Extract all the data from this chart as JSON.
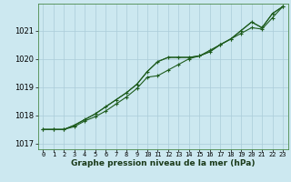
{
  "background_color": "#cce8f0",
  "grid_color": "#aaccd8",
  "line_color": "#1e5c1e",
  "x": [
    0,
    1,
    2,
    3,
    4,
    5,
    6,
    7,
    8,
    9,
    10,
    11,
    12,
    13,
    14,
    15,
    16,
    17,
    18,
    19,
    20,
    21,
    22,
    23
  ],
  "line1": [
    1017.5,
    1017.5,
    1017.5,
    1017.65,
    1017.85,
    1018.05,
    1018.3,
    1018.55,
    1018.8,
    1019.1,
    1019.55,
    1019.9,
    1020.05,
    1020.05,
    1020.05,
    1020.1,
    1020.25,
    1020.5,
    1020.7,
    1021.0,
    1021.3,
    1021.1,
    1021.6,
    1021.85
  ],
  "line3": [
    1017.5,
    1017.5,
    1017.5,
    1017.65,
    1017.85,
    1018.05,
    1018.3,
    1018.55,
    1018.8,
    1019.1,
    1019.55,
    1019.9,
    1020.05,
    1020.05,
    1020.05,
    1020.1,
    1020.25,
    1020.5,
    1020.7,
    1021.0,
    1021.3,
    1021.1,
    1021.6,
    1021.85
  ],
  "ylim": [
    1016.8,
    1021.95
  ],
  "yticks": [
    1017,
    1018,
    1019,
    1020,
    1021
  ],
  "xtick_labels": [
    "0",
    "1",
    "2",
    "3",
    "4",
    "5",
    "6",
    "7",
    "8",
    "9",
    "10",
    "11",
    "12",
    "13",
    "14",
    "15",
    "16",
    "17",
    "18",
    "19",
    "20",
    "21",
    "22",
    "23"
  ],
  "xlabel": "Graphe pression niveau de la mer (hPa)",
  "marker": "+",
  "markersize": 3.5,
  "linewidth": 0.8
}
